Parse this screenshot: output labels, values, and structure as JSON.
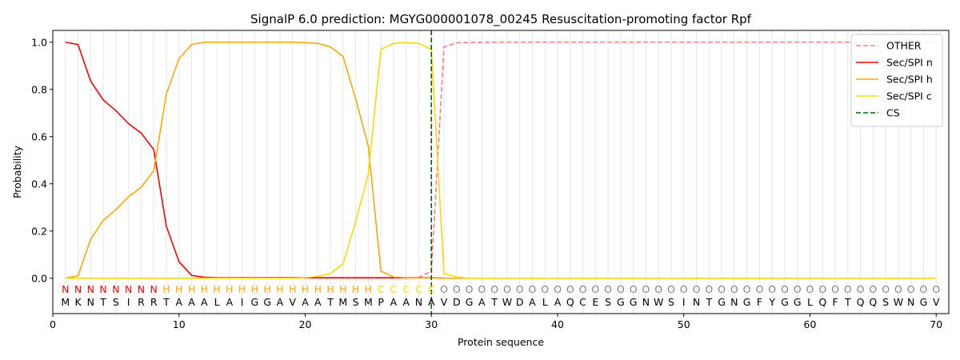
{
  "chart_data": {
    "type": "line",
    "title": "SignalP 6.0 prediction: MGYG000001078_00245 Resuscitation-promoting factor Rpf",
    "xlabel": "Protein sequence",
    "ylabel": "Probability",
    "xlim": [
      0,
      71
    ],
    "ylim": [
      -0.15,
      1.05
    ],
    "xticks": [
      "0",
      "10",
      "20",
      "30",
      "40",
      "50",
      "60",
      "70"
    ],
    "yticks": [
      "0.0",
      "0.2",
      "0.4",
      "0.6",
      "0.8",
      "1.0"
    ],
    "sequence": [
      "M",
      "K",
      "N",
      "T",
      "S",
      "I",
      "R",
      "R",
      "T",
      "A",
      "A",
      "A",
      "L",
      "A",
      "I",
      "G",
      "G",
      "A",
      "V",
      "A",
      "A",
      "T",
      "M",
      "S",
      "M",
      "P",
      "A",
      "A",
      "N",
      "A",
      "V",
      "D",
      "G",
      "A",
      "T",
      "W",
      "D",
      "A",
      "L",
      "A",
      "Q",
      "C",
      "E",
      "S",
      "G",
      "G",
      "N",
      "W",
      "S",
      "I",
      "N",
      "T",
      "G",
      "N",
      "G",
      "F",
      "Y",
      "G",
      "G",
      "L",
      "Q",
      "F",
      "T",
      "Q",
      "Q",
      "S",
      "W",
      "N",
      "G",
      "V"
    ],
    "regions": [
      "N",
      "N",
      "N",
      "N",
      "N",
      "N",
      "N",
      "N",
      "H",
      "H",
      "H",
      "H",
      "H",
      "H",
      "H",
      "H",
      "H",
      "H",
      "H",
      "H",
      "H",
      "H",
      "H",
      "H",
      "H",
      "C",
      "C",
      "C",
      "C",
      "C",
      "O",
      "O",
      "O",
      "O",
      "O",
      "O",
      "O",
      "O",
      "O",
      "O",
      "O",
      "O",
      "O",
      "O",
      "O",
      "O",
      "O",
      "O",
      "O",
      "O",
      "O",
      "O",
      "O",
      "O",
      "O",
      "O",
      "O",
      "O",
      "O",
      "O",
      "O",
      "O",
      "O",
      "O",
      "O",
      "O",
      "O",
      "O",
      "O",
      "O"
    ],
    "region_colors": {
      "N": "#ff0000",
      "H": "#ffa500",
      "C": "#ffd700",
      "O": "#808080"
    },
    "cleavage_site": 30,
    "legend_position": "top-right",
    "series": [
      {
        "name": "OTHER",
        "color": "#f08080",
        "dash": "dashed",
        "values": [
          0,
          0,
          0,
          0,
          0,
          0,
          0,
          0,
          0,
          0,
          0,
          0,
          0,
          0,
          0,
          0,
          0,
          0,
          0,
          0,
          0,
          0,
          0,
          0,
          0,
          0,
          0,
          0,
          0.003,
          0.03,
          0.98,
          0.997,
          0.999,
          0.999,
          1,
          1,
          1,
          1,
          1,
          1,
          1,
          1,
          1,
          1,
          1,
          1,
          1,
          1,
          1,
          1,
          1,
          1,
          1,
          1,
          1,
          1,
          1,
          1,
          1,
          1,
          1,
          1,
          1,
          1,
          1,
          1,
          1,
          1,
          1,
          1
        ]
      },
      {
        "name": "Sec/SPI n",
        "color": "#ff0000",
        "dash": "solid",
        "values": [
          1.0,
          0.99,
          0.835,
          0.755,
          0.71,
          0.655,
          0.615,
          0.545,
          0.22,
          0.07,
          0.012,
          0.004,
          0.002,
          0.002,
          0.002,
          0.002,
          0.002,
          0.002,
          0.002,
          0.002,
          0.002,
          0.002,
          0.002,
          0.002,
          0.002,
          0.002,
          0.002,
          0.002,
          0.002,
          0.002,
          0,
          0,
          0,
          0,
          0,
          0,
          0,
          0,
          0,
          0,
          0,
          0,
          0,
          0,
          0,
          0,
          0,
          0,
          0,
          0,
          0,
          0,
          0,
          0,
          0,
          0,
          0,
          0,
          0,
          0,
          0,
          0,
          0,
          0,
          0,
          0,
          0,
          0,
          0,
          0
        ]
      },
      {
        "name": "Sec/SPI h",
        "color": "#ffa500",
        "dash": "solid",
        "values": [
          0,
          0.01,
          0.165,
          0.245,
          0.29,
          0.345,
          0.385,
          0.455,
          0.78,
          0.93,
          0.99,
          1.0,
          1.0,
          1.0,
          1.0,
          1.0,
          1.0,
          1.0,
          1.0,
          0.998,
          0.995,
          0.98,
          0.94,
          0.76,
          0.56,
          0.03,
          0.005,
          0.002,
          0.001,
          0.001,
          0,
          0,
          0,
          0,
          0,
          0,
          0,
          0,
          0,
          0,
          0,
          0,
          0,
          0,
          0,
          0,
          0,
          0,
          0,
          0,
          0,
          0,
          0,
          0,
          0,
          0,
          0,
          0,
          0,
          0,
          0,
          0,
          0,
          0,
          0,
          0,
          0,
          0,
          0,
          0
        ]
      },
      {
        "name": "Sec/SPI c",
        "color": "#ffd700",
        "dash": "solid",
        "values": [
          0,
          0,
          0,
          0,
          0,
          0,
          0,
          0,
          0,
          0,
          0,
          0,
          0,
          0,
          0,
          0,
          0,
          0,
          0,
          0.002,
          0.008,
          0.02,
          0.06,
          0.24,
          0.44,
          0.97,
          0.995,
          0.998,
          0.995,
          0.97,
          0.02,
          0.005,
          0,
          0,
          0,
          0,
          0,
          0,
          0,
          0,
          0,
          0,
          0,
          0,
          0,
          0,
          0,
          0,
          0,
          0,
          0,
          0,
          0,
          0,
          0,
          0,
          0,
          0,
          0,
          0,
          0,
          0,
          0,
          0,
          0,
          0,
          0,
          0,
          0,
          0
        ]
      },
      {
        "name": "CS",
        "color": "#006400",
        "dash": "dashed",
        "values": []
      }
    ]
  }
}
